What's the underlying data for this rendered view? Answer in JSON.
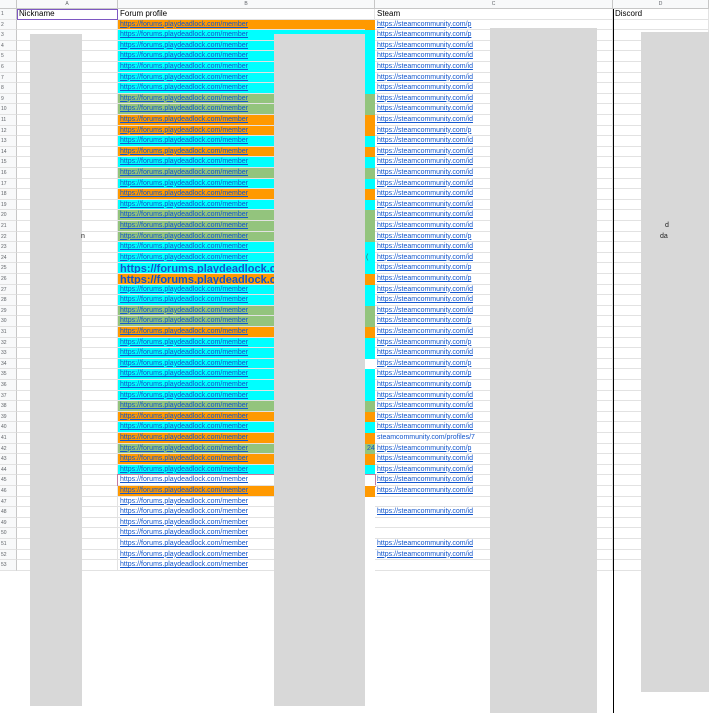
{
  "columns": [
    "A",
    "B",
    "C",
    "D"
  ],
  "headers": {
    "a": "Nickname",
    "b": "Forum profile",
    "c": "Steam",
    "d": "Discord"
  },
  "forum_link_text": "https://forums.playdeadlock.com/member",
  "forum_link_text_large": "https://forums.playdeadlock.com/m",
  "steam_texts": {
    "p": "https://steamcommunity.com/p",
    "id": "https://steamcommunity.com/id",
    "profiles": "steamcommunity.com/profiles/7"
  },
  "colors": {
    "orange": "#ff9900",
    "cyan": "#00ffff",
    "green": "#93c47d",
    "none": "#ffffff"
  },
  "row_numbers": [
    "1",
    "2",
    "3",
    "4",
    "5",
    "6",
    "7",
    "8",
    "9",
    "10",
    "11",
    "12",
    "13",
    "14",
    "15",
    "16",
    "17",
    "18",
    "19",
    "20",
    "21",
    "22",
    "23",
    "24",
    "25",
    "26",
    "27",
    "28",
    "29",
    "30",
    "31",
    "32",
    "33",
    "34",
    "35",
    "36",
    "37",
    "38",
    "39",
    "40",
    "41",
    "42",
    "43",
    "44",
    "45",
    "46",
    "47",
    "48",
    "49",
    "50",
    "51",
    "52",
    "53"
  ],
  "rows": [
    {
      "fc": "orange",
      "sc": "p",
      "cc": "orange"
    },
    {
      "fc": "cyan",
      "sc": "p",
      "cc": "cyan"
    },
    {
      "fc": "cyan",
      "sc": "id",
      "cc": "cyan"
    },
    {
      "fc": "cyan",
      "sc": "id",
      "cc": "cyan"
    },
    {
      "fc": "cyan",
      "sc": "id",
      "cc": "cyan"
    },
    {
      "fc": "cyan",
      "sc": "id",
      "cc": "cyan"
    },
    {
      "fc": "cyan",
      "sc": "id",
      "cc": "cyan"
    },
    {
      "fc": "green",
      "sc": "id",
      "cc": "green"
    },
    {
      "fc": "green",
      "sc": "id",
      "cc": "green"
    },
    {
      "fc": "orange",
      "sc": "id",
      "cc": "orange"
    },
    {
      "fc": "orange",
      "sc": "p",
      "cc": "orange"
    },
    {
      "fc": "cyan",
      "sc": "id",
      "cc": "cyan"
    },
    {
      "fc": "orange",
      "sc": "id",
      "cc": "orange"
    },
    {
      "fc": "cyan",
      "sc": "id",
      "cc": "cyan"
    },
    {
      "fc": "green",
      "sc": "id",
      "cc": "green"
    },
    {
      "fc": "cyan",
      "sc": "id",
      "cc": "cyan"
    },
    {
      "fc": "orange",
      "sc": "id",
      "cc": "orange"
    },
    {
      "fc": "cyan",
      "sc": "id",
      "cc": "cyan"
    },
    {
      "fc": "green",
      "sc": "id",
      "cc": "green"
    },
    {
      "fc": "green",
      "sc": "id",
      "cc": "green"
    },
    {
      "fc": "green",
      "sc": "p",
      "cc": "green"
    },
    {
      "fc": "cyan",
      "sc": "id",
      "cc": "cyan"
    },
    {
      "fc": "cyan",
      "sc": "id",
      "cc": "cyan"
    },
    {
      "fc": "cyan",
      "sc": "p",
      "cc": "cyan",
      "big": true
    },
    {
      "fc": "orange",
      "sc": "p",
      "cc": "orange",
      "big": true
    },
    {
      "fc": "cyan",
      "sc": "id",
      "cc": "cyan"
    },
    {
      "fc": "cyan",
      "sc": "id",
      "cc": "cyan"
    },
    {
      "fc": "green",
      "sc": "id",
      "cc": "green"
    },
    {
      "fc": "green",
      "sc": "p",
      "cc": "green"
    },
    {
      "fc": "orange",
      "sc": "id",
      "cc": "orange"
    },
    {
      "fc": "cyan",
      "sc": "p",
      "cc": "cyan"
    },
    {
      "fc": "cyan",
      "sc": "id",
      "cc": "cyan"
    },
    {
      "fc": "cyan",
      "sc": "p",
      "cc": "none"
    },
    {
      "fc": "cyan",
      "sc": "p",
      "cc": "cyan"
    },
    {
      "fc": "cyan",
      "sc": "p",
      "cc": "cyan"
    },
    {
      "fc": "cyan",
      "sc": "id",
      "cc": "cyan"
    },
    {
      "fc": "green",
      "sc": "id",
      "cc": "green"
    },
    {
      "fc": "orange",
      "sc": "id",
      "cc": "orange"
    },
    {
      "fc": "cyan",
      "sc": "id",
      "cc": "cyan"
    },
    {
      "fc": "orange",
      "sc": "profiles",
      "cc": "orange"
    },
    {
      "fc": "green",
      "sc": "p",
      "cc": "green"
    },
    {
      "fc": "orange",
      "sc": "id",
      "cc": "orange"
    },
    {
      "fc": "cyan",
      "sc": "id",
      "cc": "cyan"
    },
    {
      "fc": "none",
      "sc": "id",
      "cc": "none",
      "sel": true
    },
    {
      "fc": "orange",
      "sc": "id",
      "cc": "orange"
    },
    {
      "fc": "none",
      "sc": "",
      "cc": "none"
    },
    {
      "fc": "none",
      "sc": "id",
      "cc": "none"
    },
    {
      "fc": "none",
      "sc": "",
      "cc": "none"
    },
    {
      "fc": "none",
      "sc": "",
      "cc": "none"
    },
    {
      "fc": "none",
      "sc": "id",
      "cc": "none"
    },
    {
      "fc": "none",
      "sc": "id",
      "cc": "none"
    },
    {
      "fc": "none",
      "sc": "",
      "cc": "none"
    }
  ],
  "partial_texts": {
    "row22_a": "n",
    "row21_d": "d",
    "row22_d": "da",
    "row24_c": "(",
    "row42_c": "24"
  }
}
